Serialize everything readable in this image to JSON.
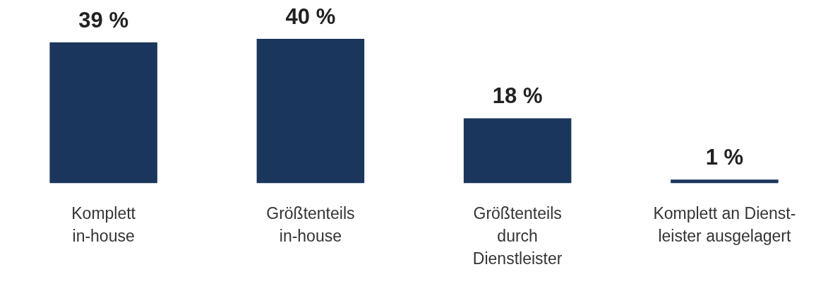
{
  "chart_data": {
    "type": "bar",
    "categories": [
      "Komplett\nin-house",
      "Größtenteils\nin-house",
      "Größtenteils\ndurch\nDienstleister",
      "Komplett an Dienst-\nleister ausgelagert"
    ],
    "values": [
      39,
      40,
      18,
      1
    ],
    "color": "#1b365d",
    "value_labels": [
      "39 %",
      "40 %",
      "18 %",
      "1 %"
    ],
    "grid": false,
    "legend": false
  }
}
